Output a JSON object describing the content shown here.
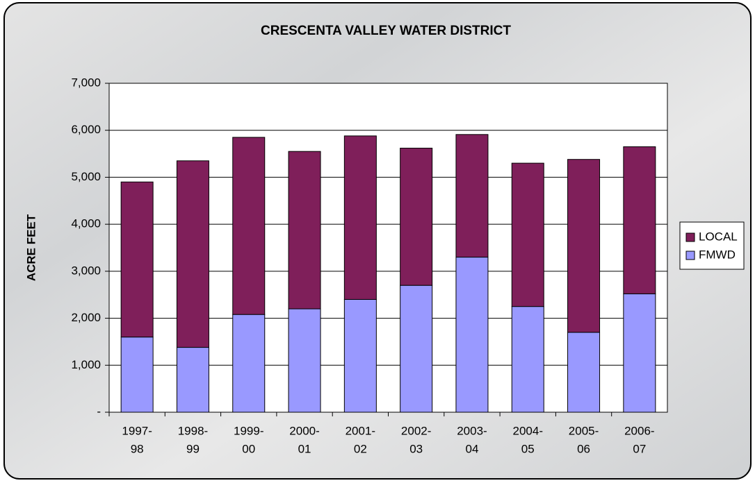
{
  "chart_data": {
    "type": "stacked_bar",
    "title": "CRESCENTA VALLEY WATER DISTRICT",
    "y_label": "ACRE FEET",
    "categories": [
      [
        "1997-",
        "98"
      ],
      [
        "1998-",
        "99"
      ],
      [
        "1999-",
        "00"
      ],
      [
        "2000-",
        "01"
      ],
      [
        "2001-",
        "02"
      ],
      [
        "2002-",
        "03"
      ],
      [
        "2003-",
        "04"
      ],
      [
        "2004-",
        "05"
      ],
      [
        "2005-",
        "06"
      ],
      [
        "2006-",
        "07"
      ]
    ],
    "series": [
      {
        "name": "FMWD",
        "color": "#9999ff",
        "values": [
          1600,
          1380,
          2080,
          2200,
          2400,
          2700,
          3300,
          2250,
          1700,
          2520
        ]
      },
      {
        "name": "LOCAL",
        "color": "#7f1f5a",
        "values": [
          3300,
          3970,
          3770,
          3350,
          3480,
          2920,
          2610,
          3050,
          3680,
          3130
        ]
      }
    ],
    "ylim": [
      0,
      7000
    ],
    "yticks": [
      {
        "value": 0,
        "label": "-"
      },
      {
        "value": 1000,
        "label": "1,000"
      },
      {
        "value": 2000,
        "label": "2,000"
      },
      {
        "value": 3000,
        "label": "3,000"
      },
      {
        "value": 4000,
        "label": "4,000"
      },
      {
        "value": 5000,
        "label": "5,000"
      },
      {
        "value": 6000,
        "label": "6,000"
      },
      {
        "value": 7000,
        "label": "7,000"
      }
    ],
    "grid": true,
    "legend": "right"
  }
}
